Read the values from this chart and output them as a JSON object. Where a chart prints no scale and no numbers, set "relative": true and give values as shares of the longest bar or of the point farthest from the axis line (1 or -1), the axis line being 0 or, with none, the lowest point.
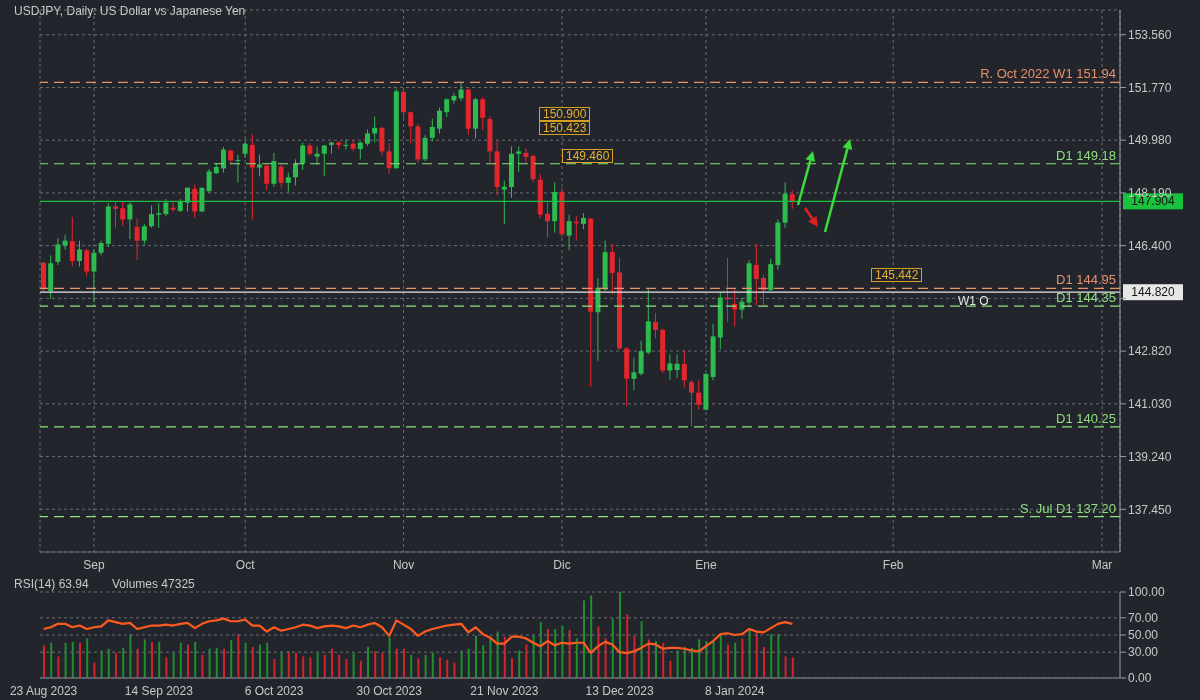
{
  "chart_data": [
    {
      "type": "candlestick",
      "title": "USDJPY, Daily:  US Dollar vs Japanese Yen",
      "categories": [
        null,
        null,
        null,
        null,
        null,
        null,
        null,
        "Sep",
        null,
        null,
        null,
        null,
        null,
        null,
        null,
        null,
        null,
        null,
        null,
        null,
        null,
        null,
        null,
        null,
        null,
        null,
        null,
        null,
        "Oct",
        null,
        null,
        null,
        null,
        null,
        null,
        null,
        null,
        null,
        null,
        null,
        null,
        null,
        null,
        null,
        null,
        null,
        null,
        null,
        null,
        null,
        "Nov",
        null,
        null,
        null,
        null,
        null,
        null,
        null,
        null,
        null,
        null,
        null,
        null,
        null,
        null,
        null,
        null,
        null,
        null,
        null,
        null,
        null,
        "Dic",
        null,
        null,
        null,
        null,
        null,
        null,
        null,
        null,
        null,
        null,
        null,
        null,
        null,
        null,
        null,
        null,
        null,
        null,
        null,
        "Ene",
        null,
        null,
        null,
        null,
        null,
        null,
        null,
        null,
        null,
        null,
        null,
        null,
        null,
        null,
        null,
        null,
        null,
        null,
        null,
        null,
        null,
        null,
        null,
        null,
        null,
        "Feb",
        null,
        null,
        null,
        null,
        null,
        null,
        null,
        null,
        null,
        null,
        null,
        null,
        null,
        null,
        null,
        null,
        null,
        null,
        null,
        null,
        null,
        null,
        null,
        null,
        null,
        null,
        null,
        null,
        "Mar",
        null,
        null
      ],
      "ohlc": [
        [
          145.82,
          145.85,
          144.86,
          144.91
        ],
        [
          144.86,
          146.07,
          144.6,
          145.8
        ],
        [
          145.85,
          146.66,
          145.74,
          146.44
        ],
        [
          146.4,
          146.77,
          146.26,
          146.57
        ],
        [
          146.55,
          147.37,
          145.69,
          145.88
        ],
        [
          145.88,
          146.57,
          145.69,
          146.27
        ],
        [
          146.24,
          146.29,
          145.35,
          145.52
        ],
        [
          145.52,
          146.29,
          144.47,
          146.16
        ],
        [
          146.16,
          146.57,
          146.07,
          146.49
        ],
        [
          146.46,
          147.84,
          146.35,
          147.73
        ],
        [
          147.73,
          147.87,
          147.01,
          147.65
        ],
        [
          147.67,
          147.89,
          147.07,
          147.29
        ],
        [
          147.29,
          147.89,
          146.62,
          147.8
        ],
        [
          147.03,
          147.32,
          145.91,
          146.57
        ],
        [
          146.57,
          147.14,
          146.44,
          147.06
        ],
        [
          147.06,
          147.76,
          147.01,
          147.47
        ],
        [
          147.45,
          147.84,
          147.01,
          147.5
        ],
        [
          147.47,
          147.98,
          147.4,
          147.86
        ],
        [
          147.69,
          147.89,
          147.54,
          147.62
        ],
        [
          147.58,
          147.98,
          147.54,
          147.91
        ],
        [
          147.86,
          148.37,
          147.56,
          148.37
        ],
        [
          148.33,
          148.47,
          147.34,
          147.56
        ],
        [
          147.56,
          148.39,
          147.54,
          148.36
        ],
        [
          148.25,
          149.0,
          148.2,
          148.92
        ],
        [
          148.86,
          149.19,
          148.83,
          149.07
        ],
        [
          149.02,
          149.75,
          148.88,
          149.66
        ],
        [
          149.63,
          149.66,
          149.16,
          149.3
        ],
        [
          149.29,
          149.49,
          148.55,
          149.31
        ],
        [
          149.52,
          149.93,
          149.38,
          149.86
        ],
        [
          149.82,
          150.19,
          147.29,
          149.05
        ],
        [
          149.05,
          149.49,
          148.75,
          149.16
        ],
        [
          149.11,
          149.16,
          148.28,
          148.5
        ],
        [
          148.5,
          149.55,
          148.39,
          149.27
        ],
        [
          149.08,
          149.16,
          148.37,
          148.53
        ],
        [
          148.53,
          148.88,
          148.2,
          148.72
        ],
        [
          148.72,
          149.33,
          148.44,
          149.19
        ],
        [
          149.19,
          149.9,
          148.97,
          149.8
        ],
        [
          149.8,
          149.88,
          149.44,
          149.52
        ],
        [
          149.42,
          149.77,
          149.16,
          149.52
        ],
        [
          149.52,
          149.82,
          148.77,
          149.8
        ],
        [
          149.82,
          149.93,
          149.52,
          149.9
        ],
        [
          149.9,
          149.93,
          149.68,
          149.82
        ],
        [
          149.79,
          150.01,
          149.66,
          149.82
        ],
        [
          149.86,
          150.01,
          149.6,
          149.69
        ],
        [
          149.68,
          149.93,
          149.33,
          149.9
        ],
        [
          149.86,
          150.34,
          149.79,
          150.21
        ],
        [
          150.21,
          150.78,
          149.9,
          150.4
        ],
        [
          150.4,
          150.43,
          149.46,
          149.6
        ],
        [
          149.6,
          149.88,
          148.83,
          149.03
        ],
        [
          149.03,
          151.73,
          149.0,
          151.64
        ],
        [
          151.62,
          151.66,
          150.67,
          150.93
        ],
        [
          150.93,
          150.96,
          149.88,
          150.45
        ],
        [
          150.45,
          150.54,
          149.22,
          149.33
        ],
        [
          149.33,
          150.15,
          149.27,
          150.06
        ],
        [
          150.06,
          150.71,
          149.93,
          150.43
        ],
        [
          150.37,
          151.09,
          150.21,
          150.98
        ],
        [
          150.93,
          151.4,
          150.76,
          151.37
        ],
        [
          151.33,
          151.59,
          151.22,
          151.48
        ],
        [
          151.4,
          151.92,
          151.31,
          151.7
        ],
        [
          151.7,
          151.73,
          150.15,
          150.37
        ],
        [
          150.37,
          151.42,
          150.04,
          151.37
        ],
        [
          151.37,
          151.44,
          150.32,
          150.74
        ],
        [
          150.7,
          150.78,
          149.22,
          149.6
        ],
        [
          149.6,
          149.99,
          148.11,
          148.39
        ],
        [
          148.3,
          148.61,
          147.14,
          148.4
        ],
        [
          148.39,
          149.77,
          148.02,
          149.52
        ],
        [
          149.52,
          149.77,
          148.91,
          149.6
        ],
        [
          149.55,
          149.71,
          149.22,
          149.41
        ],
        [
          149.44,
          149.49,
          148.55,
          148.66
        ],
        [
          148.64,
          148.83,
          147.32,
          147.45
        ],
        [
          147.48,
          147.89,
          146.68,
          147.23
        ],
        [
          147.23,
          148.55,
          146.84,
          148.22
        ],
        [
          148.22,
          148.36,
          146.68,
          146.79
        ],
        [
          146.74,
          147.45,
          146.24,
          147.23
        ],
        [
          147.21,
          147.4,
          146.57,
          147.16
        ],
        [
          147.14,
          147.51,
          146.96,
          147.34
        ],
        [
          147.32,
          147.32,
          141.61,
          144.16
        ],
        [
          144.14,
          145.29,
          142.49,
          144.97
        ],
        [
          144.91,
          146.57,
          144.86,
          146.18
        ],
        [
          146.18,
          146.46,
          144.75,
          145.47
        ],
        [
          145.49,
          145.99,
          142.87,
          142.91
        ],
        [
          142.91,
          142.95,
          140.94,
          141.88
        ],
        [
          141.88,
          142.6,
          141.5,
          142.1
        ],
        [
          142.05,
          143.17,
          141.99,
          142.82
        ],
        [
          142.77,
          144.97,
          142.71,
          143.83
        ],
        [
          143.81,
          144.12,
          143.26,
          143.54
        ],
        [
          143.54,
          143.59,
          142.07,
          142.16
        ],
        [
          142.16,
          142.71,
          141.85,
          142.4
        ],
        [
          142.18,
          142.71,
          141.91,
          142.39
        ],
        [
          142.38,
          142.87,
          141.58,
          141.83
        ],
        [
          141.77,
          141.83,
          140.26,
          141.41
        ],
        [
          141.41,
          141.83,
          140.83,
          141.0
        ],
        [
          140.83,
          142.05,
          140.81,
          142.05
        ],
        [
          141.94,
          143.75,
          141.83,
          143.32
        ],
        [
          143.28,
          144.8,
          142.87,
          144.64
        ],
        [
          144.64,
          145.99,
          143.81,
          144.58
        ],
        [
          144.42,
          144.91,
          143.65,
          144.23
        ],
        [
          144.23,
          144.64,
          143.92,
          144.5
        ],
        [
          144.47,
          145.91,
          144.31,
          145.8
        ],
        [
          145.74,
          146.46,
          144.36,
          145.27
        ],
        [
          145.3,
          145.41,
          144.36,
          144.89
        ],
        [
          144.89,
          145.96,
          144.86,
          145.77
        ],
        [
          145.74,
          147.29,
          145.58,
          147.18
        ],
        [
          147.18,
          148.55,
          147.01,
          148.17
        ],
        [
          148.14,
          148.28,
          147.65,
          147.9
        ],
        null,
        null,
        null,
        null,
        null,
        null,
        null,
        null,
        null,
        null,
        null,
        null,
        null,
        null,
        null,
        null,
        null,
        null,
        null,
        null,
        null,
        null,
        null,
        null,
        null,
        null,
        null,
        null,
        null,
        null,
        null,
        null,
        null,
        null,
        null,
        null,
        null,
        null,
        null,
        null,
        null,
        null,
        null,
        null,
        null
      ],
      "colors": [
        "#e3262c",
        "#2dbb4e",
        "#2dbb4e",
        "#2dbb4e",
        "#e3262c",
        "#2dbb4e",
        "#e3262c",
        "#2dbb4e",
        "#2dbb4e",
        "#2dbb4e",
        "#e3262c",
        "#e3262c",
        "#2dbb4e",
        "#e3262c",
        "#2dbb4e",
        "#2dbb4e",
        "#2dbb4e",
        "#2dbb4e",
        "#e3262c",
        "#2dbb4e",
        "#2dbb4e",
        "#e3262c",
        "#2dbb4e",
        "#2dbb4e",
        "#2dbb4e",
        "#2dbb4e",
        "#e3262c",
        "#2dbb4e",
        "#2dbb4e",
        "#e3262c",
        "#2dbb4e",
        "#e3262c",
        "#2dbb4e",
        "#e3262c",
        "#2dbb4e",
        "#2dbb4e",
        "#2dbb4e",
        "#e3262c",
        "#2dbb4e",
        "#2dbb4e",
        "#2dbb4e",
        "#e3262c",
        "#2dbb4e",
        "#e3262c",
        "#2dbb4e",
        "#2dbb4e",
        "#2dbb4e",
        "#e3262c",
        "#e3262c",
        "#2dbb4e",
        "#e3262c",
        "#e3262c",
        "#e3262c",
        "#2dbb4e",
        "#2dbb4e",
        "#2dbb4e",
        "#2dbb4e",
        "#2dbb4e",
        "#2dbb4e",
        "#e3262c",
        "#2dbb4e",
        "#e3262c",
        "#e3262c",
        "#e3262c",
        "#2dbb4e",
        "#2dbb4e",
        "#2dbb4e",
        "#e3262c",
        "#e3262c",
        "#e3262c",
        "#e3262c",
        "#2dbb4e",
        "#e3262c",
        "#2dbb4e",
        "#e3262c",
        "#2dbb4e",
        "#e3262c",
        "#2dbb4e",
        "#2dbb4e",
        "#e3262c",
        "#e3262c",
        "#e3262c",
        "#2dbb4e",
        "#2dbb4e",
        "#2dbb4e",
        "#e3262c",
        "#e3262c",
        "#2dbb4e",
        "#2dbb4e",
        "#e3262c",
        "#e3262c",
        "#e3262c",
        "#2dbb4e",
        "#2dbb4e",
        "#2dbb4e",
        "#e3262c",
        "#e3262c",
        "#2dbb4e",
        "#2dbb4e",
        "#e3262c",
        "#e3262c",
        "#2dbb4e",
        "#2dbb4e",
        "#2dbb4e",
        "#e3262c",
        null,
        null,
        null,
        null,
        null,
        null,
        null,
        null,
        null,
        null,
        null,
        null,
        null,
        null,
        null,
        null,
        null,
        null,
        null,
        null,
        null,
        null,
        null,
        null,
        null,
        null,
        null,
        null,
        null,
        null,
        null,
        null,
        null,
        null,
        null,
        null,
        null,
        null,
        null,
        null,
        null,
        null,
        null,
        null,
        null
      ],
      "ylim": [
        136.0,
        154.4
      ],
      "yticks": [
        {
          "value": 137.45,
          "label": "137.450"
        },
        {
          "value": 139.24,
          "label": "139.240"
        },
        {
          "value": 141.03,
          "label": "141.030"
        },
        {
          "value": 142.82,
          "label": "142.820"
        },
        {
          "value": 144.61,
          "label": null
        },
        {
          "value": 146.4,
          "label": "146.400"
        },
        {
          "value": 148.19,
          "label": "148.190"
        },
        {
          "value": 149.98,
          "label": "149.980"
        },
        {
          "value": 151.77,
          "label": "151.770"
        },
        {
          "value": 153.56,
          "label": "153.560"
        }
      ],
      "grid": true,
      "ref_lines": [
        {
          "axis": "y",
          "value": 151.94,
          "label": "R. Oct 2022 W1 151.94",
          "color": "#e8916a",
          "line_style": "dashed"
        },
        {
          "axis": "y",
          "value": 149.18,
          "label": "D1 149.18",
          "color": "#8fdf7f",
          "line_style": "dashed"
        },
        {
          "axis": "y",
          "value": 147.904,
          "label": "147.904",
          "color": "#19c23c",
          "line_style": "solid"
        },
        {
          "axis": "y",
          "value": 144.95,
          "label": "D1 144.95",
          "color": "#e8916a",
          "line_style": "dashed"
        },
        {
          "axis": "y",
          "value": 144.82,
          "label": "144.820",
          "color": "#e6e6e6",
          "line_style": "solid"
        },
        {
          "axis": "y",
          "value": 144.35,
          "label": "D1 144.35",
          "color": "#8fdf7f",
          "line_style": "dashed"
        },
        {
          "axis": "y",
          "value": 140.25,
          "label": "D1 140.25",
          "color": "#8fdf7f",
          "line_style": "dashed"
        },
        {
          "axis": "y",
          "value": 137.2,
          "label": "S. Jul D1 137.20",
          "color": "#8fdf7f",
          "line_style": "dashed"
        }
      ],
      "annotations": [
        "150.900",
        "150.423",
        "149.460",
        "145.442",
        {
          "text": "W1 O",
          "y": 144.82
        }
      ]
    },
    {
      "type": "line",
      "title": "RSI(14) 63.94",
      "categories": [
        "23 Aug 2023",
        null,
        null,
        null,
        null,
        null,
        null,
        null,
        null,
        null,
        null,
        null,
        null,
        null,
        null,
        null,
        "14 Sep 2023",
        null,
        null,
        null,
        null,
        null,
        null,
        null,
        null,
        null,
        null,
        null,
        null,
        null,
        null,
        null,
        "6 Oct 2023",
        null,
        null,
        null,
        null,
        null,
        null,
        null,
        null,
        null,
        null,
        null,
        null,
        null,
        null,
        null,
        "30 Oct 2023",
        null,
        null,
        null,
        null,
        null,
        null,
        null,
        null,
        null,
        null,
        null,
        null,
        null,
        null,
        null,
        "21 Nov 2023",
        null,
        null,
        null,
        null,
        null,
        null,
        null,
        null,
        null,
        null,
        null,
        null,
        null,
        null,
        null,
        "13 Dec 2023",
        null,
        null,
        null,
        null,
        null,
        null,
        null,
        null,
        null,
        null,
        null,
        null,
        null,
        null,
        null,
        "8 Jan 2024",
        null,
        null,
        null,
        null,
        null,
        null,
        null,
        null,
        null,
        null,
        null,
        null,
        null,
        null,
        null,
        null,
        null,
        null,
        null,
        null,
        null,
        null,
        null,
        null,
        null,
        null,
        null,
        null,
        null,
        null,
        null,
        null,
        null,
        null,
        null,
        null,
        null,
        null,
        null,
        null,
        null,
        null,
        null,
        null,
        null,
        null,
        null,
        null,
        null,
        null,
        null,
        null,
        null
      ],
      "series": [
        {
          "color": "#ff5a1f",
          "values": [
            57,
            59,
            63,
            63,
            59,
            61,
            57,
            59,
            60,
            67,
            65,
            63,
            64,
            57,
            59,
            61,
            61,
            62,
            61,
            63,
            64,
            58,
            63,
            66,
            67,
            69,
            66,
            66,
            68,
            61,
            61,
            54,
            59,
            55,
            57,
            59,
            62,
            61,
            58,
            60,
            61,
            60,
            58,
            61,
            59,
            62,
            64,
            59,
            49,
            67,
            62,
            57,
            49,
            54,
            57,
            59,
            61,
            62,
            63,
            53,
            59,
            51,
            47,
            40,
            40,
            48,
            48,
            46,
            41,
            37,
            43,
            38,
            41,
            40,
            41,
            41,
            29,
            37,
            42,
            39,
            30,
            29,
            31,
            35,
            40,
            39,
            34,
            35,
            35,
            34,
            32,
            31,
            37,
            43,
            51,
            52,
            50,
            51,
            57,
            54,
            53,
            58,
            63,
            65,
            63,
            null,
            null,
            null,
            null,
            null,
            null,
            null,
            null,
            null,
            null,
            null,
            null,
            null,
            null,
            null,
            null,
            null,
            null,
            null,
            null,
            null,
            null,
            null,
            null,
            null,
            null,
            null,
            null,
            null,
            null,
            null,
            null,
            null,
            null,
            null,
            null,
            null,
            null,
            null,
            null,
            null,
            null,
            null,
            null,
            null
          ]
        }
      ],
      "ylim": [
        0,
        100
      ],
      "yticks": [
        {
          "value": 0,
          "label": "0.00"
        },
        {
          "value": 30,
          "label": "30.00"
        },
        {
          "value": 50,
          "label": "50.00"
        },
        {
          "value": 70,
          "label": "70.00"
        },
        {
          "value": 100,
          "label": "100.00"
        }
      ],
      "grid": "y"
    },
    {
      "type": "bar",
      "title": "Volumes 47325",
      "relative": true,
      "categories": [
        null,
        null,
        null,
        null,
        null,
        null,
        null,
        null,
        null,
        null,
        null,
        null,
        null,
        null,
        null,
        null,
        null,
        null,
        null,
        null,
        null,
        null,
        null,
        null,
        null,
        null,
        null,
        null,
        null,
        null,
        null,
        null,
        null,
        null,
        null,
        null,
        null,
        null,
        null,
        null,
        null,
        null,
        null,
        null,
        null,
        null,
        null,
        null,
        null,
        null,
        null,
        null,
        null,
        null,
        null,
        null,
        null,
        null,
        null,
        null,
        null,
        null,
        null,
        null,
        null,
        null,
        null,
        null,
        null,
        null,
        null,
        null,
        null,
        null,
        null,
        null,
        null,
        null,
        null,
        null,
        null,
        null,
        null,
        null,
        null,
        null,
        null,
        null,
        null,
        null,
        null,
        null,
        null,
        null,
        null,
        null,
        null,
        null,
        null,
        null,
        null,
        null,
        null,
        null,
        null,
        null,
        null,
        null,
        null,
        null,
        null,
        null,
        null,
        null,
        null,
        null,
        null,
        null,
        null,
        null,
        null,
        null,
        null,
        null,
        null,
        null,
        null,
        null,
        null,
        null,
        null,
        null,
        null,
        null,
        null,
        null,
        null,
        null,
        null,
        null,
        null,
        null,
        null,
        null,
        null,
        null,
        null,
        null,
        null,
        null
      ],
      "values": [
        0.38,
        0.41,
        0.25,
        0.41,
        0.42,
        0.41,
        0.46,
        0.18,
        0.32,
        0.34,
        0.29,
        0.35,
        0.51,
        0.34,
        0.45,
        0.42,
        0.42,
        0.24,
        0.29,
        0.41,
        0.39,
        0.42,
        0.27,
        0.34,
        0.35,
        0.34,
        0.44,
        0.51,
        0.41,
        0.36,
        0.39,
        0.41,
        0.22,
        0.31,
        0.31,
        0.29,
        0.25,
        0.24,
        0.29,
        0.27,
        0.34,
        0.27,
        0.22,
        0.29,
        0.2,
        0.36,
        0.31,
        0.29,
        0.47,
        0.34,
        0.34,
        0.27,
        0.23,
        0.27,
        0.29,
        0.24,
        0.21,
        0.18,
        0.32,
        0.34,
        0.49,
        0.38,
        0.47,
        0.54,
        0.48,
        0.23,
        0.32,
        0.39,
        0.5,
        0.65,
        0.57,
        0.57,
        0.61,
        0.56,
        0.46,
        0.9,
        0.96,
        0.6,
        0.46,
        0.69,
        1,
        0.74,
        0.49,
        0.66,
        0.45,
        0.43,
        0.41,
        0.2,
        0.32,
        0.36,
        0.35,
        0.45,
        0.43,
        0.43,
        0.5,
        0.39,
        0.41,
        0.46,
        0.57,
        0.54,
        0.36,
        0.51,
        0.51,
        0.25,
        0.24,
        null,
        null,
        null,
        null,
        null,
        null,
        null,
        null,
        null,
        null,
        null,
        null,
        null,
        null,
        null,
        null,
        null,
        null,
        null,
        null,
        null,
        null,
        null,
        null,
        null,
        null,
        null,
        null,
        null,
        null,
        null,
        null,
        null,
        null,
        null,
        null,
        null,
        null,
        null,
        null,
        null,
        null,
        null,
        null,
        null
      ],
      "colors": [
        "#d0262b",
        "#1f8f2f",
        "#d0262b",
        "#1f8f2f",
        "#1f8f2f",
        "#d0262b",
        "#1f8f2f",
        "#d0262b",
        "#1f8f2f",
        "#1f8f2f",
        "#d0262b",
        "#1f8f2f",
        "#1f8f2f",
        "#d0262b",
        "#1f8f2f",
        "#d0262b",
        "#1f8f2f",
        "#d0262b",
        "#1f8f2f",
        "#1f8f2f",
        "#d0262b",
        "#1f8f2f",
        "#d0262b",
        "#1f8f2f",
        "#1f8f2f",
        "#d0262b",
        "#1f8f2f",
        "#d0262b",
        "#1f8f2f",
        "#d0262b",
        "#1f8f2f",
        "#1f8f2f",
        "#d0262b",
        "#1f8f2f",
        "#d0262b",
        "#d0262b",
        "#d0262b",
        "#d0262b",
        "#1f8f2f",
        "#d0262b",
        "#d0262b",
        "#d0262b",
        "#d0262b",
        "#1f8f2f",
        "#d0262b",
        "#1f8f2f",
        "#d0262b",
        "#d0262b",
        "#1f8f2f",
        "#d0262b",
        "#d0262b",
        "#1f8f2f",
        "#d0262b",
        "#1f8f2f",
        "#1f8f2f",
        "#d0262b",
        "#d0262b",
        "#d0262b",
        "#1f8f2f",
        "#1f8f2f",
        "#1f8f2f",
        "#1f8f2f",
        "#1f8f2f",
        "#1f8f2f",
        "#d0262b",
        "#d0262b",
        "#1f8f2f",
        "#d0262b",
        "#1f8f2f",
        "#1f8f2f",
        "#d0262b",
        "#1f8f2f",
        "#1f8f2f",
        "#d0262b",
        "#1f8f2f",
        "#1f8f2f",
        "#1f8f2f",
        "#d0262b",
        "#d0262b",
        "#1f8f2f",
        "#1f8f2f",
        "#d0262b",
        "#d0262b",
        "#1f8f2f",
        "#d0262b",
        "#1f8f2f",
        "#d0262b",
        "#d0262b",
        "#1f8f2f",
        "#1f8f2f",
        "#1f8f2f",
        "#1f8f2f",
        "#1f8f2f",
        "#1f8f2f",
        "#1f8f2f",
        "#d0262b",
        "#1f8f2f",
        "#d0262b",
        "#1f8f2f",
        "#d0262b",
        "#d0262b",
        "#1f8f2f",
        "#1f8f2f",
        "#d0262b",
        "#d0262b",
        null,
        null,
        null,
        null,
        null,
        null,
        null,
        null,
        null,
        null,
        null,
        null,
        null,
        null,
        null,
        null,
        null,
        null,
        null,
        null,
        null,
        null,
        null,
        null,
        null,
        null,
        null,
        null,
        null,
        null,
        null,
        null,
        null,
        null,
        null,
        null,
        null,
        null,
        null,
        null,
        null,
        null,
        null,
        null,
        null
      ]
    }
  ]
}
